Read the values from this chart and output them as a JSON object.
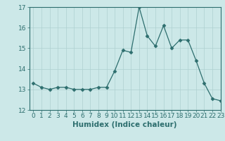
{
  "x": [
    0,
    1,
    2,
    3,
    4,
    5,
    6,
    7,
    8,
    9,
    10,
    11,
    12,
    13,
    14,
    15,
    16,
    17,
    18,
    19,
    20,
    21,
    22,
    23
  ],
  "y": [
    13.3,
    13.1,
    13.0,
    13.1,
    13.1,
    13.0,
    13.0,
    13.0,
    13.1,
    13.1,
    13.9,
    14.9,
    14.8,
    17.0,
    15.6,
    15.1,
    16.1,
    15.0,
    15.4,
    15.4,
    14.4,
    13.3,
    12.55,
    12.45
  ],
  "xlabel": "Humidex (Indice chaleur)",
  "ylim": [
    12,
    17
  ],
  "xlim": [
    -0.5,
    23
  ],
  "yticks": [
    12,
    13,
    14,
    15,
    16,
    17
  ],
  "xticks": [
    0,
    1,
    2,
    3,
    4,
    5,
    6,
    7,
    8,
    9,
    10,
    11,
    12,
    13,
    14,
    15,
    16,
    17,
    18,
    19,
    20,
    21,
    22,
    23
  ],
  "line_color": "#2d6e6e",
  "marker": "D",
  "marker_size": 2.5,
  "bg_color": "#cce8e8",
  "grid_color": "#aed0d0",
  "label_fontsize": 7.5,
  "tick_fontsize": 6.5
}
